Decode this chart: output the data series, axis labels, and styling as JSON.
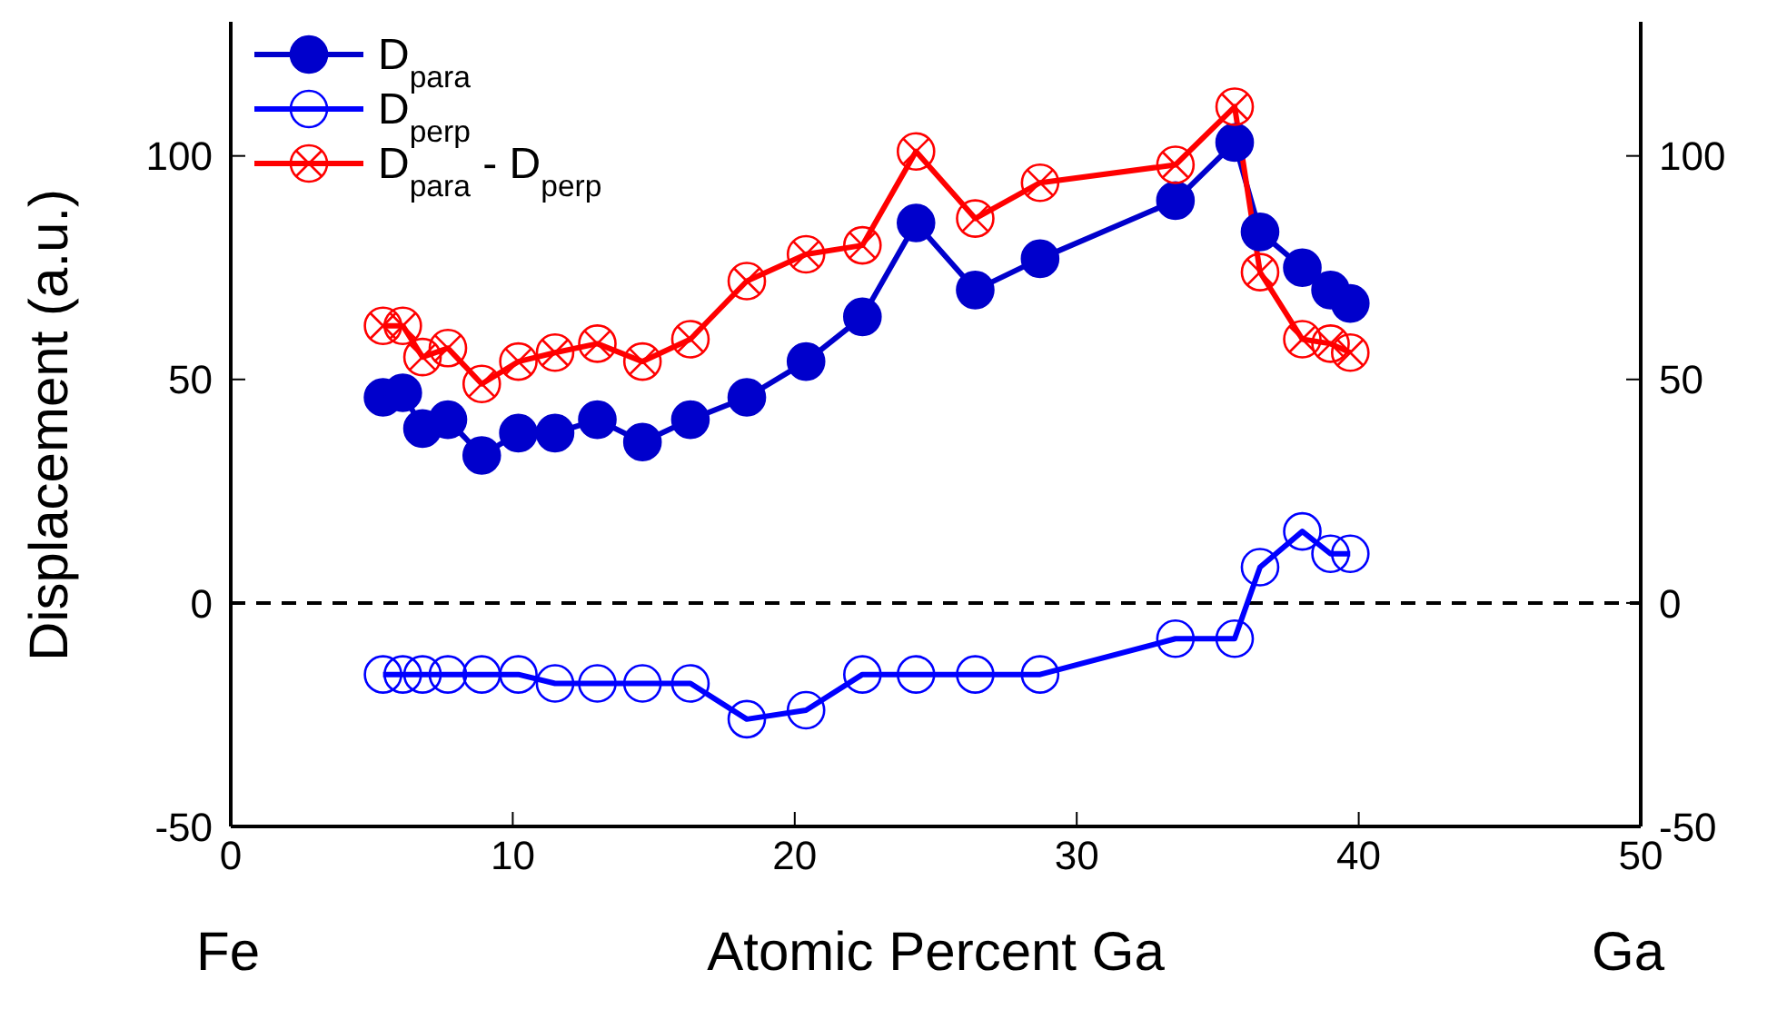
{
  "chart_data": {
    "type": "line",
    "xlabel": "Atomic Percent Ga",
    "ylabel": "Displacement (a.u.)",
    "annotations": [
      "Fe",
      "Ga"
    ],
    "x": [
      5.4,
      6.1,
      6.8,
      7.7,
      8.9,
      10.2,
      11.5,
      13.0,
      14.6,
      16.3,
      18.3,
      20.4,
      22.4,
      24.3,
      26.4,
      28.7,
      33.5,
      35.6,
      36.5,
      38.0,
      39.0,
      39.7
    ],
    "series": [
      {
        "name": "D$_{para}$",
        "color": "#0000cc",
        "marker": "circle",
        "values": [
          46,
          47,
          39,
          41,
          33,
          38,
          38,
          41,
          36,
          41,
          46,
          54,
          64,
          85,
          70,
          77,
          90,
          103,
          83,
          75,
          70,
          67
        ]
      },
      {
        "name": "D$_{perp}$",
        "color": "#0000ff",
        "marker": "circle",
        "values": [
          -16,
          -16,
          -16,
          -16,
          -16,
          -16,
          -18,
          -18,
          -18,
          -18,
          -26,
          -24,
          -16,
          -16,
          -16,
          -16,
          -8,
          -8,
          8,
          16,
          11,
          11
        ]
      },
      {
        "name": "D$_{para}$ - D$_{perp}$",
        "color": "#ff0000",
        "marker": "circle",
        "values": [
          62,
          62,
          55,
          57,
          49,
          54,
          56,
          58,
          54,
          59,
          72,
          78,
          80,
          101,
          86,
          94,
          98,
          111,
          74,
          59,
          58,
          56
        ]
      }
    ],
    "xlim": [
      0,
      50
    ],
    "xticks": [
      0,
      10,
      20,
      30,
      40,
      50
    ],
    "ylim": [
      -50,
      130
    ],
    "yticks": [
      -50,
      0,
      50,
      100
    ],
    "y2lim": [
      -50,
      130
    ],
    "y2ticks": [
      -50,
      0,
      50,
      100
    ],
    "ref_lines": [
      {
        "axis": "y",
        "value": 0,
        "color": "#000000",
        "line_style": "dashed"
      }
    ],
    "legend": "top left",
    "grid": false,
    "line_style": "solid"
  }
}
